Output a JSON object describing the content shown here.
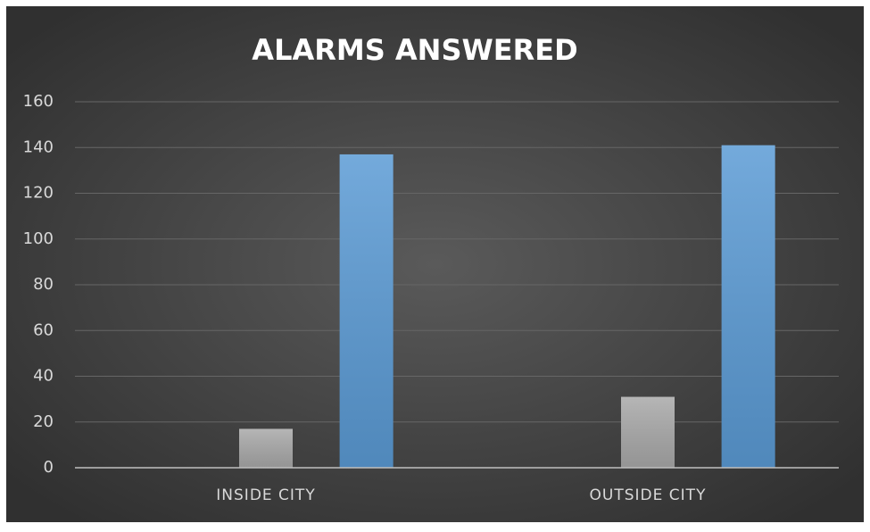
{
  "chart_data": {
    "type": "bar",
    "title": "ALARMS ANSWERED",
    "categories": [
      "INSIDE CITY",
      "OUTSIDE CITY"
    ],
    "series": [
      {
        "color": "#a5a5a5",
        "values": [
          0,
          0
        ]
      },
      {
        "color": "#a9a9a9",
        "values": [
          17,
          31
        ]
      },
      {
        "color": "#5b9bd5",
        "values": [
          137,
          141
        ]
      }
    ],
    "ylim": [
      0,
      160
    ],
    "yticks": [
      0,
      20,
      40,
      60,
      80,
      100,
      120,
      140,
      160
    ],
    "grid": true
  }
}
